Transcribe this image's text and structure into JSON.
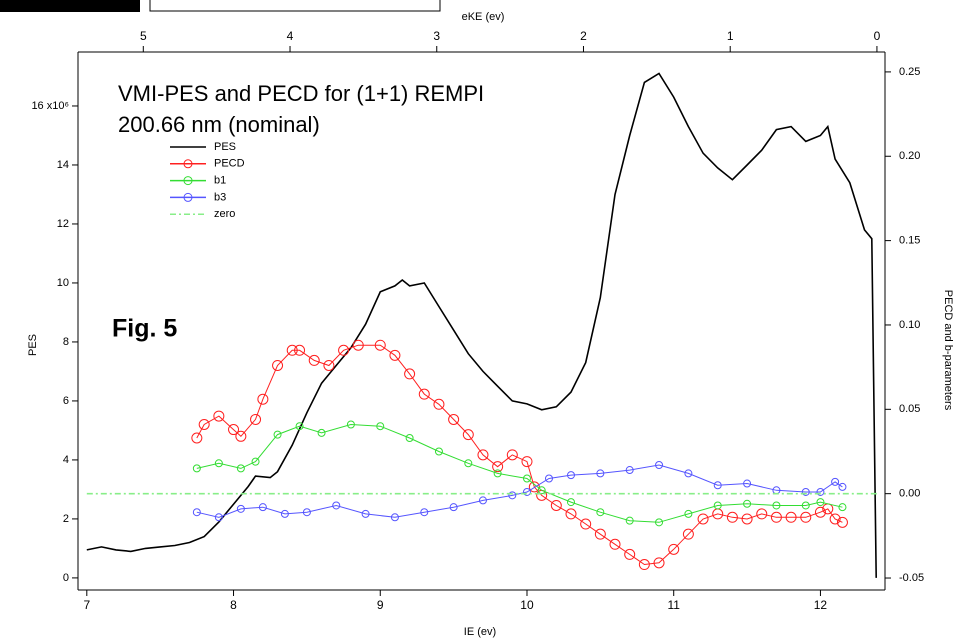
{
  "chart_data": {
    "type": "line",
    "title": "VMI-PES and PECD for (1+1) REMPI",
    "subtitle": "200.66 nm (nominal)",
    "annotation": "Fig. 5",
    "xlabel": "IE (ev)",
    "x2label": "eKE (ev)",
    "ylabel": "PES",
    "y2label": "PECD and b-parameters",
    "xlim": [
      6.94,
      12.44
    ],
    "xticks": [
      7,
      8,
      9,
      10,
      11,
      12
    ],
    "x2lim": [
      5.445,
      -0.055
    ],
    "x2ticks": [
      5,
      4,
      3,
      2,
      1,
      0
    ],
    "ylim": [
      -0.41,
      17.83
    ],
    "yticks": [
      0,
      2,
      4,
      6,
      8,
      10,
      12,
      14,
      {
        "value": 16,
        "label": "16 x10⁶"
      }
    ],
    "y2lim": [
      -0.0571,
      0.2618
    ],
    "y2ticks": [
      -0.05,
      {
        "value": 0,
        "label": "0.00"
      },
      0.05,
      {
        "value": 0.1,
        "label": "0.10"
      },
      0.15,
      {
        "value": 0.2,
        "label": "0.20"
      },
      0.25
    ],
    "series": [
      {
        "name": "PES",
        "color": "#000000",
        "axis": "y",
        "marker": false,
        "x": [
          7.0,
          7.1,
          7.2,
          7.3,
          7.4,
          7.5,
          7.6,
          7.7,
          7.8,
          7.9,
          8.0,
          8.1,
          8.15,
          8.25,
          8.3,
          8.4,
          8.5,
          8.6,
          8.7,
          8.8,
          8.9,
          9.0,
          9.1,
          9.15,
          9.2,
          9.3,
          9.4,
          9.5,
          9.6,
          9.7,
          9.8,
          9.9,
          10.0,
          10.1,
          10.2,
          10.3,
          10.4,
          10.5,
          10.6,
          10.7,
          10.8,
          10.9,
          11.0,
          11.1,
          11.2,
          11.3,
          11.4,
          11.5,
          11.6,
          11.7,
          11.8,
          11.9,
          12.0,
          12.05,
          12.1,
          12.2,
          12.3,
          12.35,
          12.38
        ],
        "values": [
          0.95,
          1.05,
          0.95,
          0.9,
          1.0,
          1.05,
          1.1,
          1.2,
          1.4,
          1.9,
          2.5,
          3.1,
          3.45,
          3.4,
          3.6,
          4.5,
          5.6,
          6.6,
          7.2,
          7.8,
          8.6,
          9.7,
          9.9,
          10.1,
          9.9,
          10.0,
          9.2,
          8.4,
          7.6,
          7.0,
          6.5,
          6.0,
          5.9,
          5.7,
          5.8,
          6.3,
          7.3,
          9.5,
          13.0,
          15.0,
          16.8,
          17.1,
          16.3,
          15.3,
          14.4,
          13.9,
          13.5,
          14.0,
          14.5,
          15.2,
          15.3,
          14.8,
          15.0,
          15.3,
          14.2,
          13.4,
          11.8,
          11.5,
          0.0
        ]
      },
      {
        "name": "PECD",
        "color": "#ff2020",
        "axis": "y2",
        "marker": true,
        "x": [
          7.75,
          7.8,
          7.9,
          8.0,
          8.05,
          8.15,
          8.2,
          8.3,
          8.4,
          8.45,
          8.55,
          8.65,
          8.75,
          8.85,
          9.0,
          9.1,
          9.2,
          9.3,
          9.4,
          9.5,
          9.6,
          9.7,
          9.8,
          9.9,
          10.0,
          10.05,
          10.1,
          10.2,
          10.3,
          10.4,
          10.5,
          10.6,
          10.7,
          10.8,
          10.9,
          11.0,
          11.1,
          11.2,
          11.3,
          11.4,
          11.5,
          11.6,
          11.7,
          11.8,
          11.9,
          12.0,
          12.05,
          12.1,
          12.15
        ],
        "values": [
          0.033,
          0.041,
          0.046,
          0.038,
          0.034,
          0.044,
          0.056,
          0.076,
          0.085,
          0.085,
          0.079,
          0.076,
          0.085,
          0.088,
          0.088,
          0.082,
          0.071,
          0.059,
          0.053,
          0.044,
          0.035,
          0.023,
          0.016,
          0.023,
          0.019,
          0.004,
          -0.001,
          -0.007,
          -0.012,
          -0.018,
          -0.024,
          -0.03,
          -0.036,
          -0.042,
          -0.041,
          -0.033,
          -0.024,
          -0.015,
          -0.012,
          -0.014,
          -0.015,
          -0.012,
          -0.014,
          -0.014,
          -0.014,
          -0.011,
          -0.009,
          -0.015,
          -0.017
        ]
      },
      {
        "name": "b1",
        "color": "#33dd33",
        "axis": "y2",
        "marker": true,
        "x": [
          7.75,
          7.9,
          8.05,
          8.15,
          8.3,
          8.45,
          8.6,
          8.8,
          9.0,
          9.2,
          9.4,
          9.6,
          9.8,
          10.0,
          10.1,
          10.3,
          10.5,
          10.7,
          10.9,
          11.1,
          11.3,
          11.5,
          11.7,
          11.9,
          12.0,
          12.15
        ],
        "values": [
          0.015,
          0.018,
          0.015,
          0.019,
          0.035,
          0.04,
          0.036,
          0.041,
          0.04,
          0.033,
          0.025,
          0.018,
          0.012,
          0.009,
          0.002,
          -0.005,
          -0.011,
          -0.016,
          -0.017,
          -0.012,
          -0.007,
          -0.006,
          -0.007,
          -0.007,
          -0.005,
          -0.008
        ]
      },
      {
        "name": "b3",
        "color": "#5555ff",
        "axis": "y2",
        "marker": true,
        "x": [
          7.75,
          7.9,
          8.05,
          8.2,
          8.35,
          8.5,
          8.7,
          8.9,
          9.1,
          9.3,
          9.5,
          9.7,
          9.9,
          10.0,
          10.15,
          10.3,
          10.5,
          10.7,
          10.9,
          11.1,
          11.3,
          11.5,
          11.7,
          11.9,
          12.0,
          12.1,
          12.15
        ],
        "values": [
          -0.011,
          -0.014,
          -0.009,
          -0.008,
          -0.012,
          -0.011,
          -0.007,
          -0.012,
          -0.014,
          -0.011,
          -0.008,
          -0.004,
          -0.001,
          0.001,
          0.009,
          0.011,
          0.012,
          0.014,
          0.017,
          0.012,
          0.005,
          0.006,
          0.002,
          0.001,
          0.001,
          0.007,
          0.004
        ]
      },
      {
        "name": "zero",
        "color": "#88ee88",
        "axis": "y2",
        "marker": false,
        "dash": true,
        "x": [
          7.0,
          12.4
        ],
        "values": [
          0,
          0
        ]
      }
    ]
  }
}
